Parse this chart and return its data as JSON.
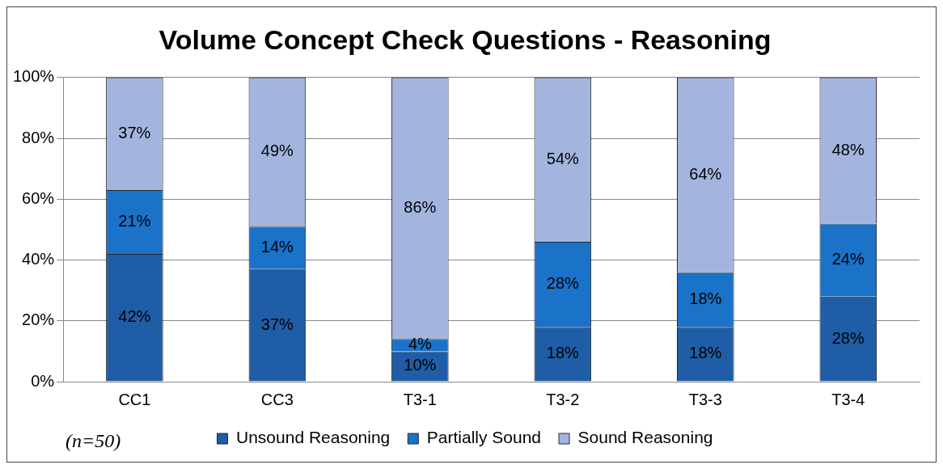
{
  "chart_data": {
    "type": "bar",
    "title": "Volume Concept Check Questions - Reasoning",
    "categories": [
      "CC1",
      "CC3",
      "T3-1",
      "T3-2",
      "T3-3",
      "T3-4"
    ],
    "stacked": true,
    "series": [
      {
        "name": "Unsound Reasoning",
        "color": "#1f5da6",
        "values": [
          42,
          37,
          10,
          18,
          18,
          28
        ],
        "value_labels": [
          "42%",
          "37%",
          "10%",
          "18%",
          "18%",
          "28%"
        ]
      },
      {
        "name": "Partially Sound",
        "color": "#1a72c9",
        "values": [
          21,
          14,
          4,
          28,
          18,
          24
        ],
        "value_labels": [
          "21%",
          "14%",
          "4%",
          "28%",
          "18%",
          "24%"
        ]
      },
      {
        "name": "Sound Reasoning",
        "color": "#a3b5df",
        "values": [
          37,
          49,
          86,
          54,
          64,
          48
        ],
        "value_labels": [
          "37%",
          "49%",
          "86%",
          "54%",
          "64%",
          "48%"
        ]
      }
    ],
    "ylim": [
      0,
      100
    ],
    "yticks": [
      {
        "value": 0,
        "label": "0%"
      },
      {
        "value": 20,
        "label": "20%"
      },
      {
        "value": 40,
        "label": "40%"
      },
      {
        "value": 60,
        "label": "60%"
      },
      {
        "value": 80,
        "label": "80%"
      },
      {
        "value": 100,
        "label": "100%"
      }
    ],
    "grid": "y",
    "legend": "bottom",
    "annotations": [
      "(n=50)"
    ]
  }
}
